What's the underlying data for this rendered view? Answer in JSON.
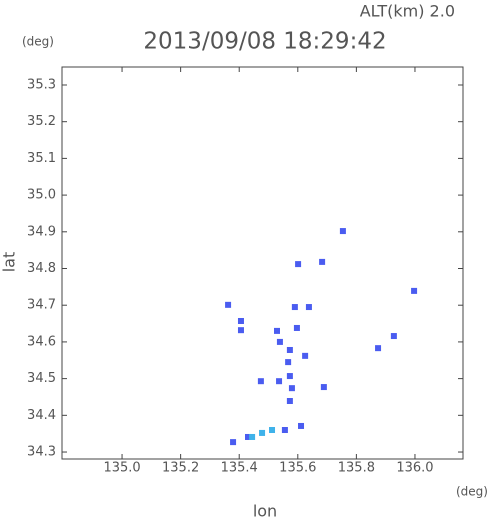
{
  "chart_data": {
    "type": "scatter",
    "title": "2013/09/08 18:29:42",
    "subtitle": "ALT(km) 2.0",
    "x_unit": "(deg)",
    "y_unit": "(deg)",
    "x_label": "lon",
    "y_label": "lat",
    "xlim": [
      134.795,
      136.164
    ],
    "ylim": [
      34.281,
      35.349
    ],
    "xticks": [
      {
        "value": 135.0,
        "label": "135.0"
      },
      135.2,
      135.4,
      135.6,
      135.8,
      {
        "value": 136.0,
        "label": "136.0"
      }
    ],
    "yticks": [
      34.3,
      34.4,
      34.5,
      34.6,
      34.7,
      34.8,
      34.9,
      {
        "value": 35.0,
        "label": "35.0"
      },
      35.1,
      35.2,
      35.3
    ],
    "series": [
      {
        "color": "#4a5cf0",
        "x": [
          135.754,
          135.683,
          135.601,
          135.997,
          135.362,
          135.638,
          135.59,
          135.406,
          135.406,
          135.597,
          135.529,
          135.874,
          135.928,
          135.539,
          135.573,
          135.567,
          135.625,
          135.474,
          135.536,
          135.573,
          135.58,
          135.689,
          135.573,
          135.379,
          135.43,
          135.556,
          135.611
        ],
        "values": [
          34.902,
          34.818,
          34.812,
          34.739,
          34.701,
          34.695,
          34.695,
          34.657,
          34.632,
          34.638,
          34.63,
          34.583,
          34.616,
          34.6,
          34.578,
          34.545,
          34.562,
          34.493,
          34.493,
          34.507,
          34.474,
          34.477,
          34.439,
          34.327,
          34.341,
          34.36,
          34.371
        ]
      },
      {
        "color": "#3fb2ea",
        "x": [
          135.444,
          135.478,
          135.512
        ],
        "values": [
          34.341,
          34.352,
          34.36
        ]
      }
    ]
  }
}
